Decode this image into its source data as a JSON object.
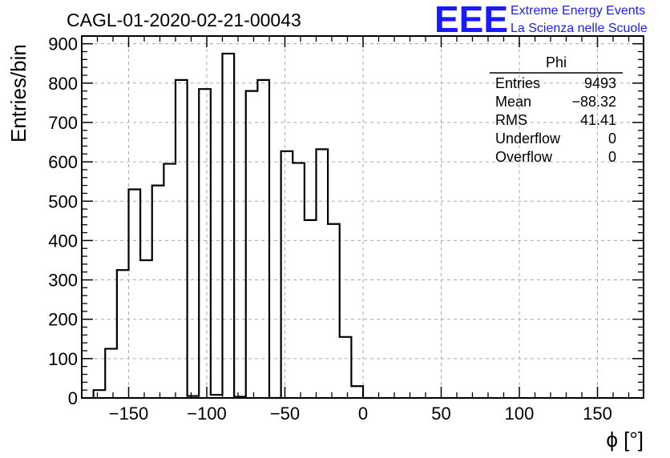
{
  "logo": {
    "mark": "EEE",
    "line1": "Extreme Energy Events",
    "line2": "La Scienza nelle Scuole",
    "color": "#1a1aff"
  },
  "stats": {
    "title": "Phi",
    "rows": [
      {
        "label": "Entries",
        "value": "9493"
      },
      {
        "label": "Mean",
        "value": "−88.32"
      },
      {
        "label": "RMS",
        "value": "41.41"
      },
      {
        "label": "Underflow",
        "value": "0"
      },
      {
        "label": "Overflow",
        "value": "0"
      }
    ]
  },
  "chart_data": {
    "type": "bar",
    "title": "CAGL-01-2020-02-21-00043",
    "xlabel": "ϕ [°]",
    "ylabel": "Entries/bin",
    "xlim": [
      -180,
      180
    ],
    "ylim": [
      0,
      920
    ],
    "xticks": [
      -150,
      -100,
      -50,
      0,
      50,
      100,
      150
    ],
    "xtick_labels": [
      "−150",
      "−100",
      "−50",
      "0",
      "50",
      "100",
      "150"
    ],
    "yticks": [
      0,
      100,
      200,
      300,
      400,
      500,
      600,
      700,
      800,
      900
    ],
    "ytick_labels": [
      "0",
      "100",
      "200",
      "300",
      "400",
      "500",
      "600",
      "700",
      "800",
      "900"
    ],
    "grid": true,
    "bin_width": 7.5,
    "bin_start": -172.5,
    "values": [
      20,
      125,
      325,
      530,
      350,
      540,
      595,
      808,
      5,
      785,
      8,
      875,
      3,
      780,
      808,
      0,
      627,
      597,
      452,
      632,
      442,
      155,
      30,
      0
    ],
    "line_color": "#000000"
  }
}
